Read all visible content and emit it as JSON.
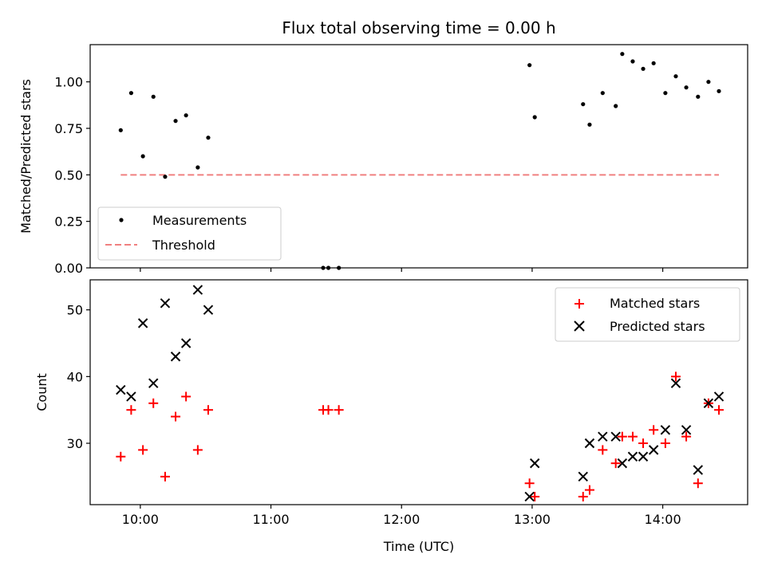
{
  "chart_data": [
    {
      "type": "scatter",
      "title": "Flux total observing time = 0.00 h",
      "xlabel": "",
      "ylabel": "Matched/Predicted stars",
      "xlim_hours": [
        9.616,
        14.65
      ],
      "ylim": [
        0,
        1.2
      ],
      "yticks": [
        0.0,
        0.25,
        0.5,
        0.75,
        1.0
      ],
      "ytick_labels": [
        "0.00",
        "0.25",
        "0.50",
        "0.75",
        "1.00"
      ],
      "xticks_hours": [
        10,
        11,
        12,
        13,
        14
      ],
      "legend_position": "lower-left",
      "grid": false,
      "series": [
        {
          "name": "Measurements",
          "marker": "dot",
          "color": "#000000",
          "x_hours": [
            9.85,
            9.93,
            10.02,
            10.1,
            10.19,
            10.27,
            10.35,
            10.44,
            10.52,
            11.4,
            11.44,
            11.52,
            12.98,
            13.02,
            13.39,
            13.44,
            13.54,
            13.64,
            13.69,
            13.77,
            13.85,
            13.93,
            14.02,
            14.1,
            14.18,
            14.27,
            14.35,
            14.43
          ],
          "y": [
            0.74,
            0.94,
            0.6,
            0.92,
            0.49,
            0.79,
            0.82,
            0.54,
            0.7,
            0.0,
            0.0,
            0.0,
            1.09,
            0.81,
            0.88,
            0.77,
            0.94,
            0.87,
            1.15,
            1.11,
            1.07,
            1.1,
            0.94,
            1.03,
            0.97,
            0.92,
            1.0,
            0.95
          ]
        },
        {
          "name": "Threshold",
          "marker": "dashed-line",
          "color": "#f08080",
          "x_hours": [
            9.85,
            14.43
          ],
          "y": [
            0.5,
            0.5
          ]
        }
      ]
    },
    {
      "type": "scatter",
      "title": "",
      "xlabel": "Time (UTC)",
      "ylabel": "Count",
      "xlim_hours": [
        9.616,
        14.65
      ],
      "ylim": [
        20.8,
        54.5
      ],
      "yticks": [
        30,
        40,
        50
      ],
      "ytick_labels": [
        "30",
        "40",
        "50"
      ],
      "xticks_hours": [
        10,
        11,
        12,
        13,
        14
      ],
      "xtick_labels": [
        "10:00",
        "11:00",
        "12:00",
        "13:00",
        "14:00"
      ],
      "legend_position": "top-right",
      "grid": false,
      "series": [
        {
          "name": "Matched stars",
          "marker": "plus",
          "color": "#ff0000",
          "x_hours": [
            9.85,
            9.93,
            10.02,
            10.1,
            10.19,
            10.27,
            10.35,
            10.44,
            10.52,
            11.4,
            11.44,
            11.52,
            12.98,
            13.02,
            13.39,
            13.44,
            13.54,
            13.64,
            13.69,
            13.77,
            13.85,
            13.93,
            14.02,
            14.1,
            14.18,
            14.27,
            14.35,
            14.43
          ],
          "y": [
            28,
            35,
            29,
            36,
            25,
            34,
            37,
            29,
            35,
            35,
            35,
            35,
            24,
            22,
            22,
            23,
            29,
            27,
            31,
            31,
            30,
            32,
            30,
            40,
            31,
            24,
            36,
            35
          ]
        },
        {
          "name": "Predicted stars",
          "marker": "x",
          "color": "#000000",
          "x_hours": [
            9.85,
            9.93,
            10.02,
            10.1,
            10.19,
            10.27,
            10.35,
            10.44,
            10.52,
            12.98,
            13.02,
            13.39,
            13.44,
            13.54,
            13.64,
            13.69,
            13.77,
            13.85,
            13.93,
            14.02,
            14.1,
            14.18,
            14.27,
            14.35,
            14.43
          ],
          "y": [
            38,
            37,
            48,
            39,
            51,
            43,
            45,
            53,
            50,
            22,
            27,
            25,
            30,
            31,
            31,
            27,
            28,
            28,
            29,
            32,
            39,
            32,
            26,
            36,
            37
          ]
        }
      ]
    }
  ]
}
